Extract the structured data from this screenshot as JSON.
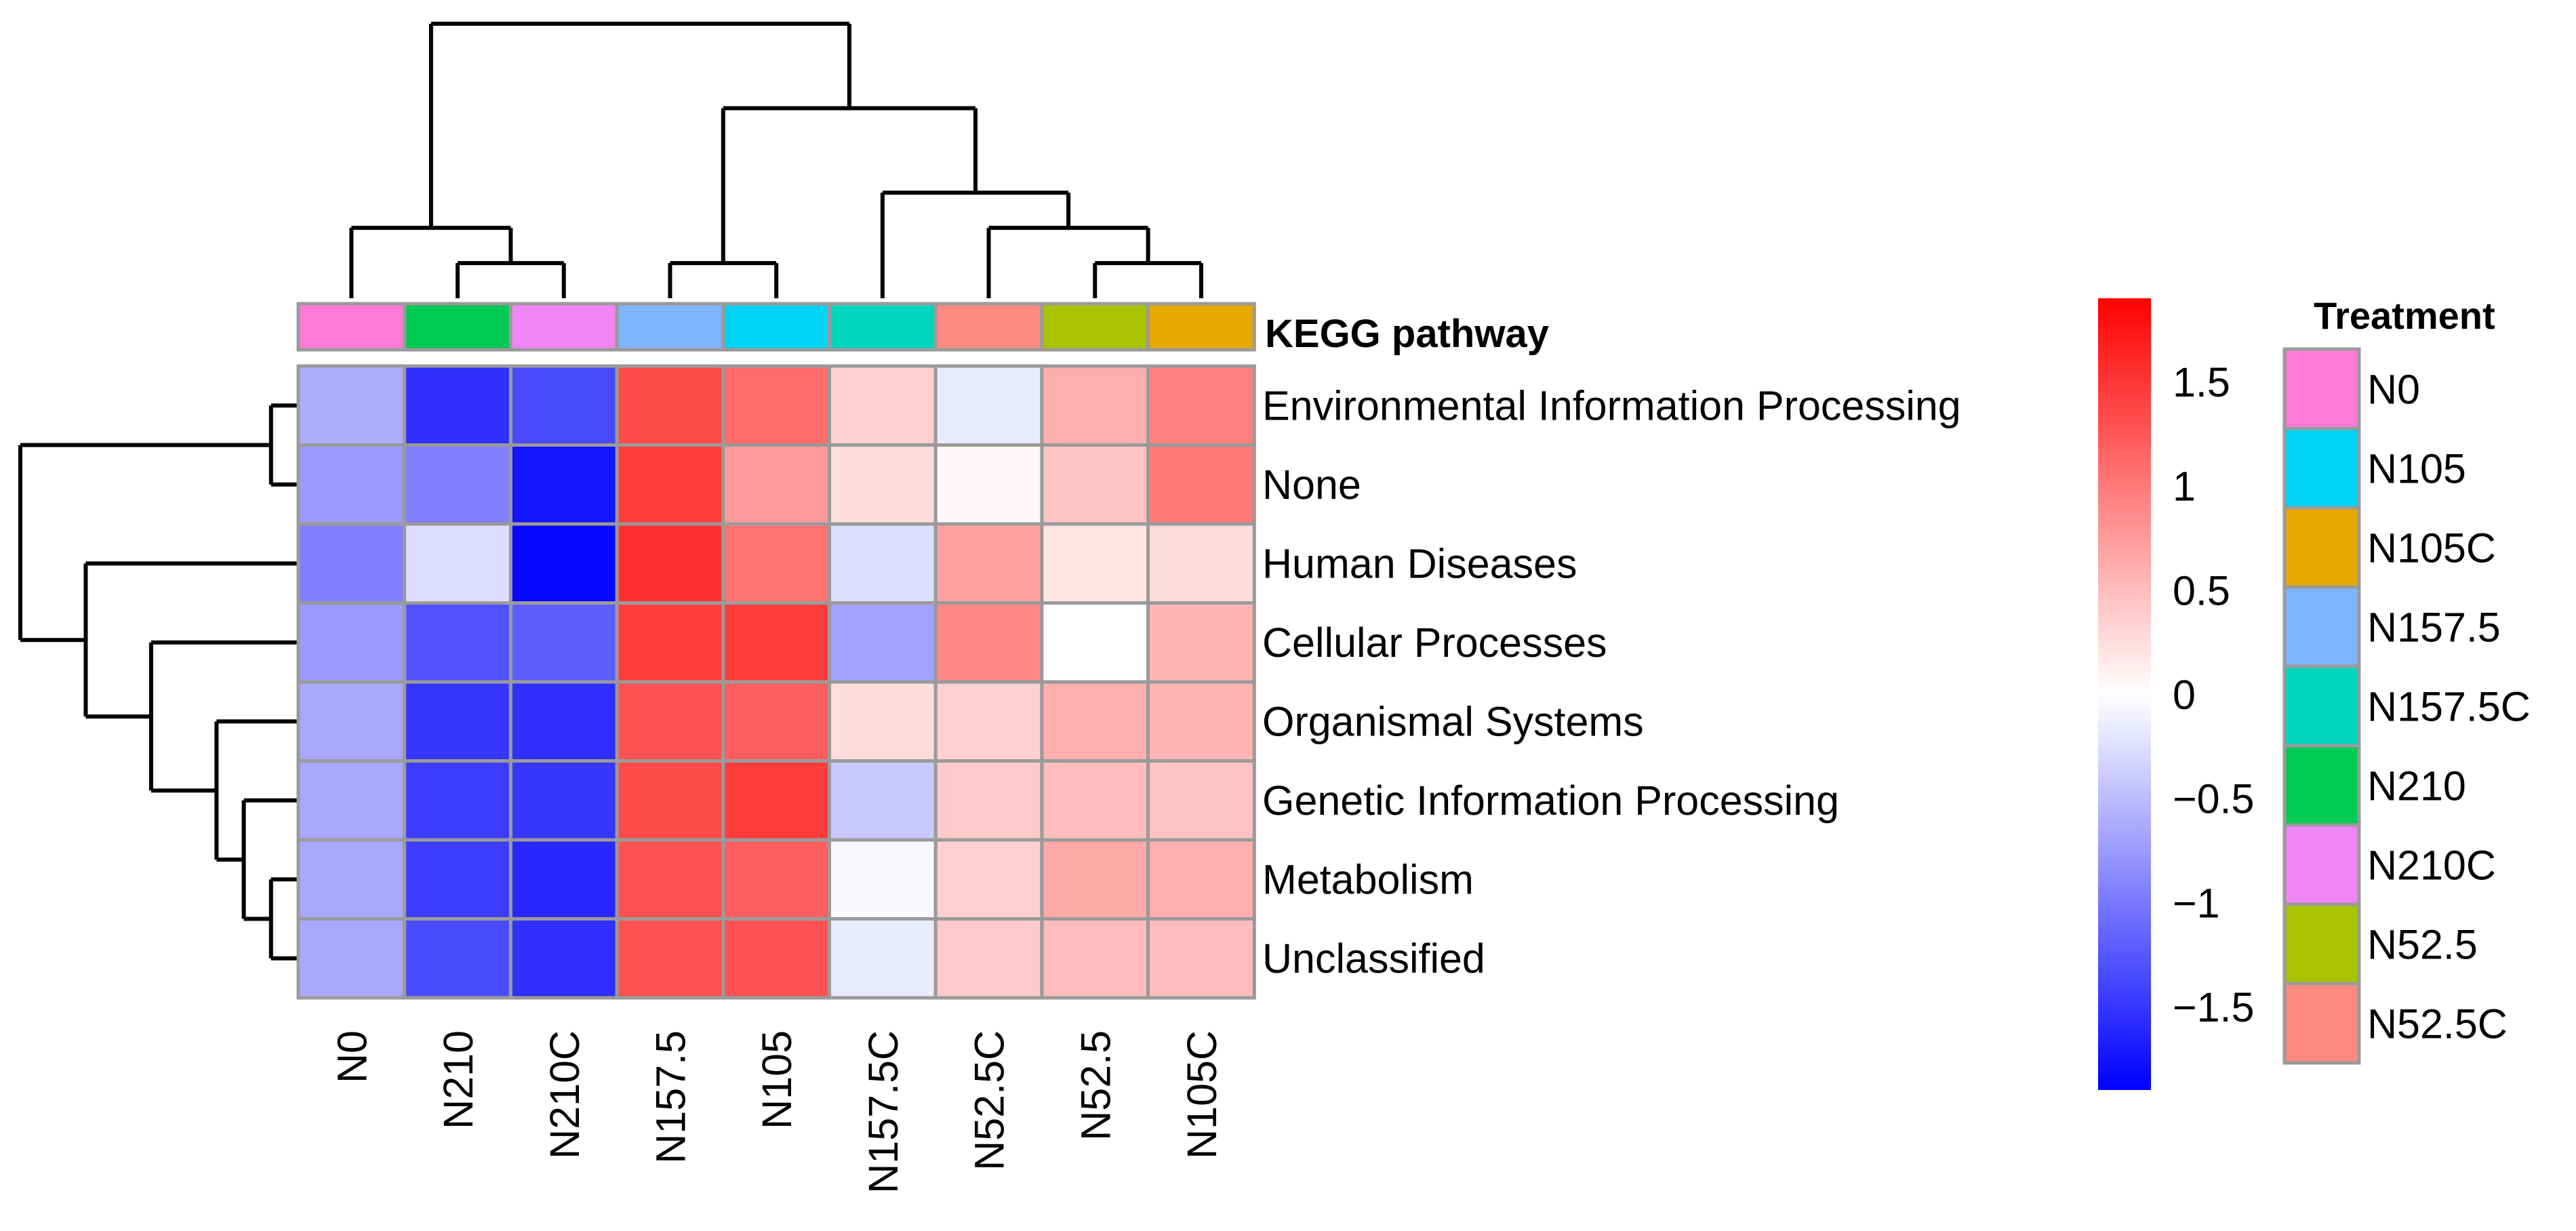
{
  "chart_data": {
    "type": "heatmap",
    "title": "",
    "columns": [
      "N0",
      "N210",
      "N210C",
      "N157.5",
      "N105",
      "N157.5C",
      "N52.5C",
      "N52.5",
      "N105C"
    ],
    "rows": [
      "Environmental Information Processing",
      "None",
      "Human Diseases",
      "Cellular Processes",
      "Organismal Systems",
      "Genetic Information Processing",
      "Metabolism",
      "Unclassified"
    ],
    "values": [
      [
        -0.6,
        -1.55,
        -1.35,
        1.35,
        1.1,
        0.35,
        -0.15,
        0.6,
        0.95
      ],
      [
        -0.75,
        -0.95,
        -1.75,
        1.45,
        0.75,
        0.25,
        0.05,
        0.45,
        1.0
      ],
      [
        -0.95,
        -0.25,
        -1.85,
        1.55,
        1.05,
        -0.25,
        0.7,
        0.2,
        0.25
      ],
      [
        -0.75,
        -1.3,
        -1.2,
        1.45,
        1.45,
        -0.7,
        0.9,
        0.0,
        0.55
      ],
      [
        -0.65,
        -1.5,
        -1.55,
        1.3,
        1.2,
        0.25,
        0.35,
        0.6,
        0.55
      ],
      [
        -0.65,
        -1.45,
        -1.5,
        1.35,
        1.45,
        -0.4,
        0.4,
        0.5,
        0.45
      ],
      [
        -0.65,
        -1.45,
        -1.6,
        1.3,
        1.2,
        -0.05,
        0.35,
        0.65,
        0.6
      ],
      [
        -0.65,
        -1.35,
        -1.55,
        1.3,
        1.3,
        -0.15,
        0.4,
        0.5,
        0.5
      ]
    ],
    "value_range": [
      -1.9,
      1.9
    ],
    "color_scale": {
      "low": "#0000FF",
      "mid": "#FFFFFF",
      "high": "#FF0000"
    },
    "color_legend_ticks": [
      "1.5",
      "1",
      "0.5",
      "0",
      "−0.5",
      "−1",
      "−1.5"
    ],
    "color_legend_tick_values": [
      1.5,
      1.0,
      0.5,
      0.0,
      -0.5,
      -1.0,
      -1.5
    ],
    "annotation_row_label": "KEGG pathway",
    "column_annotation": [
      "N0",
      "N210",
      "N210C",
      "N157.5",
      "N105",
      "N157.5C",
      "N52.5C",
      "N52.5",
      "N105C"
    ],
    "treatment_legend": {
      "title": "Treatment",
      "items": [
        {
          "label": "N0",
          "color": "#FF7AD6"
        },
        {
          "label": "N105",
          "color": "#00D2F5"
        },
        {
          "label": "N105C",
          "color": "#E8A900"
        },
        {
          "label": "N157.5",
          "color": "#7FB4FF"
        },
        {
          "label": "N157.5C",
          "color": "#00D6BE"
        },
        {
          "label": "N210",
          "color": "#00C954"
        },
        {
          "label": "N210C",
          "color": "#F085F5"
        },
        {
          "label": "N52.5",
          "color": "#A8C400"
        },
        {
          "label": "N52.5C",
          "color": "#FA8A80"
        }
      ]
    },
    "column_dendrogram": "((N0,(N210,N210C)),((N157.5,N105),(N157.5C,(N52.5C,(N52.5,N105C)))))",
    "row_dendrogram": "((Environmental Information Processing,None),(Human Diseases,(Cellular Processes,(Organismal Systems,(Genetic Information Processing,(Metabolism,Unclassified))))))"
  }
}
